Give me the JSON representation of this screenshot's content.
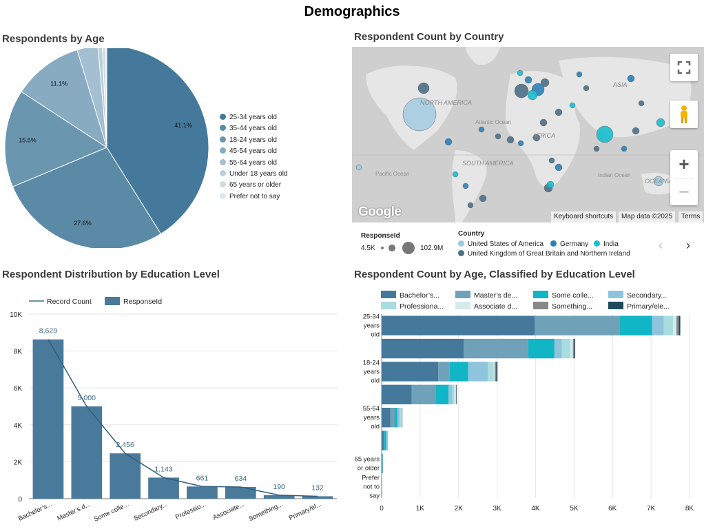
{
  "dashboard_title": "Demographics",
  "age_pie": {
    "title": "Respondents by Age",
    "legend": [
      "25-34 years old",
      "35-44 years old",
      "18-24 years old",
      "45-54 years old",
      "55-64 years old",
      "Under 18 years old",
      "65 years or older",
      "Prefer not to say"
    ]
  },
  "map": {
    "title": "Respondent Count by Country",
    "labels": [
      "NORTH AMERICA",
      "SOUTH AMERICA",
      "AFRICA",
      "ASIA",
      "Atlantic Ocean",
      "Pacific Ocean",
      "Indian Ocean",
      "OCEANIA"
    ],
    "google": "Google",
    "footer": {
      "shortcuts": "Keyboard shortcuts",
      "mapdata": "Map data ©2025",
      "terms": "Terms"
    },
    "size_legend": {
      "title": "ResponseId",
      "min": "4.5K",
      "max": "102.9M"
    },
    "country_legend": {
      "title": "Country",
      "items": [
        "United States of America",
        "Germany",
        "India",
        "United Kingdom of Great Britain and Northern Ireland"
      ]
    },
    "colors": {
      "usa": "#9ecae1",
      "germany": "#2b7fb8",
      "india": "#17becf",
      "uk": "#4d6f87"
    }
  },
  "edu_chart": {
    "title": "Respondent Distribution by Education Level",
    "legend": {
      "line": "Record Count",
      "bar": "ResponseId"
    },
    "y_ticks": [
      "0",
      "2K",
      "4K",
      "6K",
      "8K",
      "10K"
    ],
    "value_labels": [
      "8,629",
      "5,000",
      "2,456",
      "1,143",
      "661",
      "634",
      "190",
      "132"
    ],
    "categories": [
      "Bachelor’s...",
      "Master’s d...",
      "Some colle...",
      "Secondary...",
      "Professio...",
      "Associate...",
      "Something...",
      "Primary/el..."
    ]
  },
  "age_edu_chart": {
    "title": "Respondent Count by Age, Classified by Education Level",
    "legend": [
      "Bachelor’s...",
      "Master’s de...",
      "Some colle...",
      "Secondary...",
      "Professiona...",
      "Associate d...",
      "Something...",
      "Primary/ele..."
    ],
    "y_labels": [
      [
        "25-34",
        "years",
        "old"
      ],
      [
        "18-24",
        "years",
        "old"
      ],
      [
        "55-64",
        "years",
        "old"
      ],
      [
        "65 years",
        "or older"
      ],
      [
        "Prefer",
        "not to",
        "say"
      ]
    ],
    "x_ticks": [
      "0",
      "1K",
      "2K",
      "3K",
      "4K",
      "5K",
      "6K",
      "7K",
      "8K"
    ]
  },
  "chart_data": [
    {
      "type": "pie",
      "title": "Respondents by Age",
      "categories": [
        "25-34 years old",
        "35-44 years old",
        "18-24 years old",
        "45-54 years old",
        "55-64 years old",
        "Under 18 years old",
        "65 years or older",
        "Prefer not to say"
      ],
      "values": [
        41.1,
        27.6,
        15.5,
        11.1,
        3.3,
        0.7,
        0.5,
        0.2
      ],
      "slice_labels": [
        "41.1%",
        "27.6%",
        "15.5%",
        "11.1%",
        "",
        "",
        "",
        ""
      ],
      "colors": [
        "#44799b",
        "#5b8aa7",
        "#6b96b0",
        "#88abc2",
        "#a3bfd1",
        "#bacfdc",
        "#cbdae4",
        "#dfe8ef"
      ],
      "legend_position": "right"
    },
    {
      "type": "bar",
      "title": "Respondent Distribution by Education Level",
      "categories": [
        "Bachelor’s...",
        "Master’s d...",
        "Some colle...",
        "Secondary...",
        "Professio...",
        "Associate...",
        "Something...",
        "Primary/el..."
      ],
      "series": [
        {
          "name": "ResponseId",
          "values": [
            8629,
            5000,
            2456,
            1143,
            661,
            634,
            190,
            132
          ]
        },
        {
          "name": "Record Count",
          "values": [
            8629,
            5000,
            2456,
            1143,
            661,
            634,
            190,
            132
          ]
        }
      ],
      "ylim": [
        0,
        10000
      ],
      "grid": true,
      "legend_position": "top-left"
    },
    {
      "type": "bar",
      "orientation": "horizontal",
      "stacked": true,
      "title": "Respondent Count by Age, Classified by Education Level",
      "categories": [
        "25-34 years old",
        "35-44 years old",
        "18-24 years old",
        "45-54 years old",
        "55-64 years old",
        "Under 18 years old",
        "65 years or older",
        "Prefer not to say"
      ],
      "series": [
        {
          "name": "Bachelor’s...",
          "color": "#44799b",
          "values": [
            3980,
            2130,
            1470,
            780,
            230,
            60,
            20,
            8
          ]
        },
        {
          "name": "Master’s de...",
          "color": "#6fa2b8",
          "values": [
            2200,
            1680,
            300,
            620,
            110,
            10,
            8,
            4
          ]
        },
        {
          "name": "Some colle...",
          "color": "#10b5c6",
          "values": [
            850,
            680,
            480,
            340,
            70,
            50,
            6,
            2
          ]
        },
        {
          "name": "Secondary...",
          "color": "#90c4dd",
          "values": [
            300,
            190,
            510,
            100,
            60,
            40,
            3,
            2
          ]
        },
        {
          "name": "Professiona...",
          "color": "#a8dcde",
          "values": [
            240,
            220,
            150,
            50,
            40,
            0,
            2,
            0
          ]
        },
        {
          "name": "Associate d...",
          "color": "#d4ebee",
          "values": [
            90,
            70,
            30,
            40,
            15,
            0,
            1,
            0
          ]
        },
        {
          "name": "Something...",
          "color": "#888888",
          "values": [
            60,
            40,
            40,
            10,
            8,
            0,
            1,
            0
          ]
        },
        {
          "name": "Primary/ele...",
          "color": "#204a5c",
          "values": [
            40,
            20,
            30,
            10,
            7,
            0,
            0,
            0
          ]
        }
      ],
      "xlim": [
        0,
        8000
      ],
      "grid": true,
      "legend_position": "top"
    }
  ]
}
